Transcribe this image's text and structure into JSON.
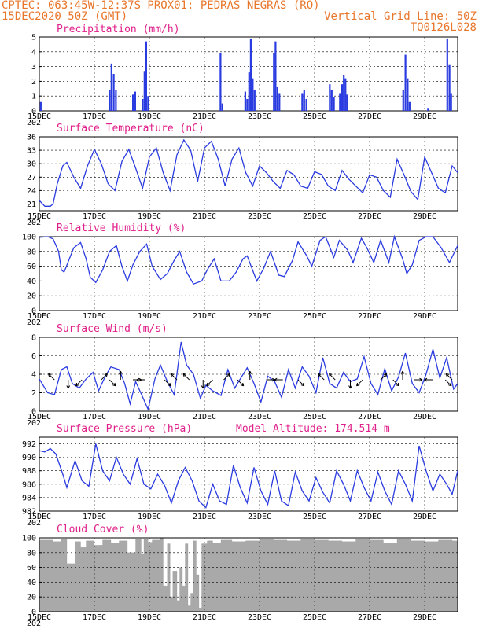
{
  "header": {
    "line1_left": "CPTEC:  063:45W-12:37S  PROX01: PEDRAS NEGRAS (RO)",
    "line2_left": "15DEC2020 50Z (GMT)",
    "line2_right": "Vertical Grid Line: 50Z",
    "line3_right": "TQ0126L028"
  },
  "x_axis": {
    "tick_labels": [
      "15DEC",
      "17DEC",
      "19DEC",
      "21DEC",
      "23DEC",
      "25DEC",
      "27DEC",
      "29DEC"
    ],
    "corner_fragment": "202"
  },
  "chart_data": [
    {
      "id": "precip",
      "type": "bar",
      "title": "Precipitation (mm/h)",
      "ylim": [
        0,
        5
      ],
      "yticks": [
        "0",
        "1",
        "2",
        "3",
        "4",
        "5"
      ],
      "x_range_days": [
        0,
        15.2
      ],
      "bars": [
        {
          "x": 0.05,
          "v": 0.6
        },
        {
          "x": 2.55,
          "v": 1.4
        },
        {
          "x": 2.62,
          "v": 3.2
        },
        {
          "x": 2.7,
          "v": 2.5
        },
        {
          "x": 2.78,
          "v": 1.4
        },
        {
          "x": 3.4,
          "v": 1.1
        },
        {
          "x": 3.48,
          "v": 1.3
        },
        {
          "x": 3.75,
          "v": 0.8
        },
        {
          "x": 3.82,
          "v": 2.7
        },
        {
          "x": 3.88,
          "v": 4.7
        },
        {
          "x": 3.95,
          "v": 1.0
        },
        {
          "x": 6.58,
          "v": 3.9
        },
        {
          "x": 6.65,
          "v": 0.5
        },
        {
          "x": 7.48,
          "v": 1.3
        },
        {
          "x": 7.55,
          "v": 0.8
        },
        {
          "x": 7.62,
          "v": 2.6
        },
        {
          "x": 7.68,
          "v": 4.9
        },
        {
          "x": 7.75,
          "v": 2.2
        },
        {
          "x": 7.82,
          "v": 1.4
        },
        {
          "x": 8.52,
          "v": 3.9
        },
        {
          "x": 8.58,
          "v": 4.7
        },
        {
          "x": 8.65,
          "v": 1.6
        },
        {
          "x": 8.72,
          "v": 1.2
        },
        {
          "x": 9.55,
          "v": 1.2
        },
        {
          "x": 9.62,
          "v": 1.4
        },
        {
          "x": 9.7,
          "v": 0.8
        },
        {
          "x": 10.55,
          "v": 1.8
        },
        {
          "x": 10.62,
          "v": 1.4
        },
        {
          "x": 10.7,
          "v": 0.9
        },
        {
          "x": 10.92,
          "v": 1.2
        },
        {
          "x": 11.0,
          "v": 1.8
        },
        {
          "x": 11.06,
          "v": 2.4
        },
        {
          "x": 11.12,
          "v": 2.2
        },
        {
          "x": 11.18,
          "v": 1.1
        },
        {
          "x": 13.22,
          "v": 1.4
        },
        {
          "x": 13.3,
          "v": 3.8
        },
        {
          "x": 13.38,
          "v": 2.2
        },
        {
          "x": 13.45,
          "v": 0.6
        },
        {
          "x": 14.12,
          "v": 0.2
        },
        {
          "x": 14.82,
          "v": 4.9
        },
        {
          "x": 14.9,
          "v": 3.1
        },
        {
          "x": 14.96,
          "v": 1.2
        }
      ]
    },
    {
      "id": "temp",
      "type": "line",
      "title": "Surface Temperature (nC)",
      "ylim": [
        19.5,
        36
      ],
      "yticks": [
        "21",
        "24",
        "27",
        "30",
        "33",
        "36"
      ],
      "t": [
        0,
        0.2,
        0.4,
        0.5,
        0.65,
        0.85,
        1.0,
        1.25,
        1.5,
        1.75,
        2.0,
        2.25,
        2.5,
        2.75,
        3.0,
        3.25,
        3.5,
        3.75,
        4.0,
        4.25,
        4.5,
        4.75,
        5.0,
        5.25,
        5.5,
        5.75,
        6.0,
        6.25,
        6.5,
        6.75,
        7.0,
        7.25,
        7.5,
        7.75,
        8.0,
        8.25,
        8.5,
        8.75,
        9.0,
        9.25,
        9.5,
        9.75,
        10.0,
        10.25,
        10.5,
        10.75,
        11.0,
        11.25,
        11.5,
        11.75,
        12.0,
        12.25,
        12.5,
        12.75,
        13.0,
        13.25,
        13.5,
        13.75,
        14.0,
        14.25,
        14.5,
        14.75,
        15.0,
        15.2
      ],
      "values": [
        21.8,
        20.5,
        20.5,
        21.0,
        25.5,
        29.5,
        30.3,
        27.0,
        24.5,
        29.5,
        33.2,
        30.0,
        25.5,
        24.0,
        30.5,
        33.2,
        29.0,
        24.5,
        31.5,
        33.5,
        28.0,
        24.0,
        32.0,
        35.3,
        33.0,
        26.0,
        33.5,
        35.0,
        31.0,
        25.0,
        31.0,
        33.5,
        28.0,
        25.0,
        29.5,
        28.0,
        26.0,
        24.5,
        28.5,
        27.5,
        25.0,
        24.5,
        28.2,
        27.6,
        25.0,
        24.0,
        28.5,
        26.5,
        25.0,
        23.5,
        27.5,
        27.0,
        24.0,
        22.5,
        31.0,
        27.5,
        23.8,
        22.0,
        31.5,
        28.0,
        24.5,
        23.5,
        29.5,
        28.0
      ]
    },
    {
      "id": "rh",
      "type": "line",
      "title": "Relative Humidity (%)",
      "ylim": [
        0,
        100
      ],
      "yticks": [
        "0",
        "20",
        "40",
        "60",
        "80",
        "100"
      ],
      "t": [
        0,
        0.3,
        0.5,
        0.7,
        0.8,
        0.9,
        1.25,
        1.5,
        1.7,
        1.85,
        2.05,
        2.3,
        2.55,
        2.8,
        3.0,
        3.2,
        3.4,
        3.65,
        3.9,
        4.1,
        4.4,
        4.65,
        4.9,
        5.1,
        5.35,
        5.6,
        5.9,
        6.1,
        6.35,
        6.6,
        6.9,
        7.15,
        7.4,
        7.55,
        7.9,
        8.15,
        8.4,
        8.7,
        8.9,
        9.2,
        9.4,
        9.7,
        9.9,
        10.2,
        10.4,
        10.7,
        10.9,
        11.2,
        11.4,
        11.7,
        11.9,
        12.15,
        12.4,
        12.7,
        12.9,
        13.2,
        13.35,
        13.55,
        13.8,
        14.05,
        14.3,
        14.6,
        14.9,
        15.2
      ],
      "values": [
        99,
        100,
        97,
        80,
        55,
        52,
        85,
        92,
        70,
        45,
        38,
        55,
        80,
        88,
        60,
        40,
        62,
        80,
        90,
        60,
        42,
        50,
        68,
        80,
        52,
        36,
        40,
        55,
        70,
        40,
        40,
        52,
        70,
        74,
        40,
        57,
        80,
        48,
        46,
        68,
        93,
        75,
        60,
        95,
        100,
        72,
        95,
        82,
        65,
        98,
        85,
        65,
        95,
        65,
        100,
        70,
        50,
        62,
        95,
        100,
        100,
        85,
        65,
        88
      ]
    },
    {
      "id": "wind",
      "type": "line",
      "title": "Surface Wind (m/s)",
      "ylim": [
        0,
        8
      ],
      "yticks": [
        "0",
        "2",
        "4",
        "6",
        "8"
      ],
      "t": [
        0,
        0.3,
        0.55,
        0.8,
        1.0,
        1.2,
        1.45,
        1.7,
        1.95,
        2.15,
        2.4,
        2.6,
        2.9,
        3.1,
        3.3,
        3.5,
        3.7,
        3.95,
        4.2,
        4.4,
        4.65,
        4.9,
        5.15,
        5.35,
        5.6,
        5.85,
        6.05,
        6.3,
        6.6,
        6.85,
        7.1,
        7.3,
        7.55,
        7.8,
        8.05,
        8.3,
        8.55,
        8.8,
        9.05,
        9.3,
        9.55,
        9.8,
        10.05,
        10.3,
        10.55,
        10.8,
        11.05,
        11.3,
        11.55,
        11.8,
        12.05,
        12.3,
        12.55,
        12.8,
        13.05,
        13.3,
        13.55,
        13.8,
        14.05,
        14.3,
        14.55,
        14.8,
        15.05,
        15.2
      ],
      "values": [
        3.5,
        2.0,
        1.8,
        4.5,
        4.8,
        3.0,
        2.5,
        3.5,
        4.2,
        2.2,
        3.8,
        4.8,
        4.5,
        3.0,
        0.8,
        3.2,
        1.9,
        0.2,
        3.5,
        5.0,
        3.2,
        1.8,
        7.5,
        5.0,
        4.0,
        1.4,
        2.8,
        2.2,
        1.7,
        4.5,
        2.5,
        3.5,
        4.7,
        3.0,
        1.0,
        3.8,
        3.2,
        1.5,
        4.5,
        2.5,
        4.8,
        3.8,
        2.0,
        5.8,
        3.0,
        2.5,
        4.2,
        3.2,
        3.5,
        5.9,
        3.0,
        1.8,
        4.6,
        2.2,
        3.7,
        6.3,
        3.0,
        2.0,
        4.0,
        6.7,
        3.6,
        5.8,
        2.4,
        3.0
      ],
      "vectors_t": [
        0.55,
        1.05,
        1.55,
        2.25,
        2.55,
        2.95,
        3.4,
        3.85,
        4.55,
        5.0,
        5.45,
        5.95,
        6.3,
        6.7,
        7.2,
        7.65,
        8.25,
        8.85,
        9.4,
        10.35,
        10.75,
        11.3,
        11.75,
        12.4,
        12.85,
        13.2,
        13.6,
        14.3,
        14.75,
        15.0
      ]
    },
    {
      "id": "pressure",
      "type": "line",
      "title": "Surface Pressure (hPa)",
      "annotation": "Model Altitude: 174.514 m",
      "ylim": [
        982,
        993
      ],
      "yticks": [
        "982",
        "984",
        "986",
        "988",
        "990",
        "992"
      ],
      "t": [
        0,
        0.2,
        0.4,
        0.6,
        0.85,
        1.0,
        1.3,
        1.55,
        1.8,
        2.05,
        2.3,
        2.55,
        2.8,
        3.05,
        3.3,
        3.55,
        3.8,
        4.05,
        4.3,
        4.55,
        4.8,
        5.05,
        5.3,
        5.55,
        5.8,
        6.05,
        6.3,
        6.55,
        6.8,
        7.05,
        7.3,
        7.55,
        7.8,
        8.05,
        8.3,
        8.55,
        8.8,
        9.05,
        9.3,
        9.55,
        9.8,
        10.05,
        10.3,
        10.55,
        10.8,
        11.05,
        11.3,
        11.55,
        11.8,
        12.05,
        12.3,
        12.55,
        12.8,
        13.05,
        13.3,
        13.55,
        13.8,
        14.05,
        14.3,
        14.55,
        14.8,
        15.0,
        15.2
      ],
      "values": [
        991.0,
        990.8,
        991.3,
        990.5,
        987.5,
        985.5,
        989.5,
        986.5,
        985.7,
        992.0,
        988.0,
        986.5,
        990.0,
        987.5,
        986.0,
        989.8,
        986.0,
        985.3,
        987.5,
        985.8,
        983.2,
        986.5,
        988.5,
        986.5,
        983.5,
        982.5,
        986.0,
        983.5,
        983.0,
        988.8,
        985.5,
        983.2,
        988.5,
        985.0,
        983.0,
        988.0,
        983.5,
        982.8,
        987.8,
        985.0,
        983.5,
        987.0,
        984.8,
        983.2,
        988.0,
        986.0,
        983.5,
        988.0,
        985.5,
        983.5,
        987.8,
        985.0,
        983.0,
        988.0,
        986.0,
        983.5,
        991.7,
        988.0,
        985.0,
        987.5,
        986.0,
        984.5,
        988.0
      ]
    },
    {
      "id": "cloud",
      "type": "area",
      "title": "Cloud Cover (%)",
      "ylim": [
        0,
        100
      ],
      "yticks": [
        "0",
        "20",
        "40",
        "60",
        "80",
        "100"
      ],
      "t": [
        0,
        0.5,
        0.8,
        1.0,
        1.3,
        1.5,
        1.7,
        2.0,
        2.3,
        2.6,
        2.9,
        3.2,
        3.5,
        3.7,
        3.8,
        3.95,
        4.1,
        4.4,
        4.5,
        4.65,
        4.75,
        4.85,
        5.0,
        5.1,
        5.2,
        5.3,
        5.4,
        5.5,
        5.6,
        5.7,
        5.8,
        5.9,
        6.1,
        6.3,
        6.6,
        7.0,
        7.5,
        8.0,
        8.5,
        9.0,
        9.5,
        10.0,
        10.5,
        11.0,
        11.5,
        12.0,
        12.5,
        13.0,
        13.5,
        14.0,
        14.5,
        15.0,
        15.2
      ],
      "values": [
        97,
        95,
        98,
        65,
        95,
        87,
        96,
        90,
        97,
        93,
        96,
        80,
        98,
        78,
        98,
        94,
        97,
        100,
        35,
        92,
        20,
        55,
        15,
        60,
        35,
        92,
        8,
        25,
        96,
        50,
        5,
        92,
        96,
        93,
        97,
        95,
        96,
        98,
        97,
        96,
        98,
        97,
        96,
        95,
        98,
        97,
        93,
        98,
        96,
        95,
        97,
        96,
        97
      ]
    }
  ]
}
